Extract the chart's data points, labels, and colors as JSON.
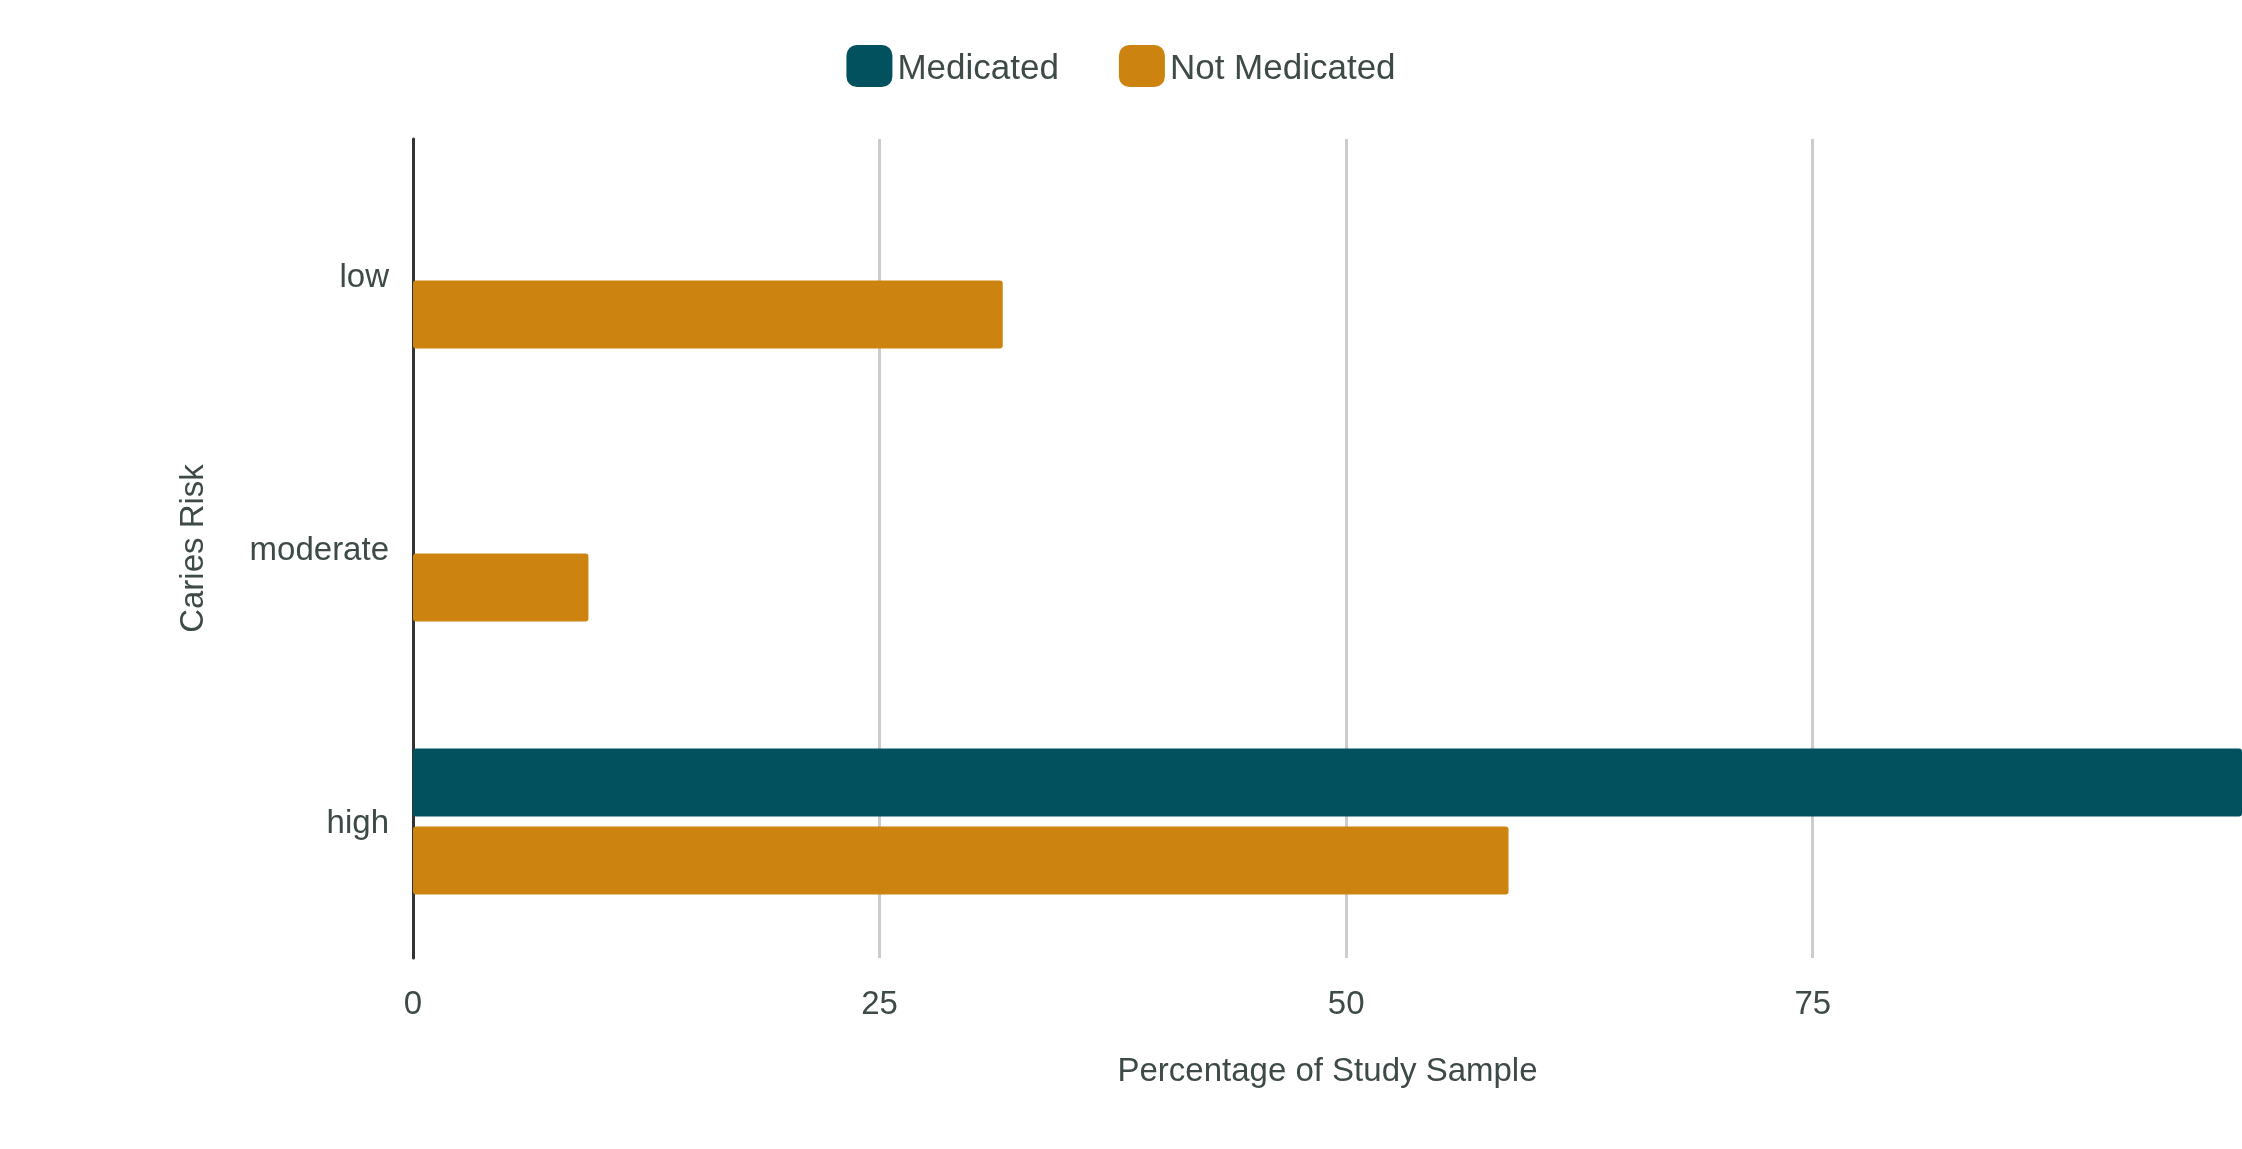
{
  "chart_data": {
    "type": "bar",
    "orientation": "horizontal",
    "xlabel": "Percentage of Study Sample",
    "ylabel": "Caries Risk",
    "categories": [
      "low",
      "moderate",
      "high"
    ],
    "series": [
      {
        "name": "Medicated",
        "color": "#01525e",
        "values": [
          null,
          null,
          98
        ]
      },
      {
        "name": "Not Medicated",
        "color": "#cd830f",
        "values": [
          31.6,
          9.4,
          58.7
        ]
      }
    ],
    "xlim": [
      0,
      98
    ],
    "xticks": [
      0,
      25,
      50,
      75
    ],
    "grid": "x",
    "legend": "top"
  }
}
